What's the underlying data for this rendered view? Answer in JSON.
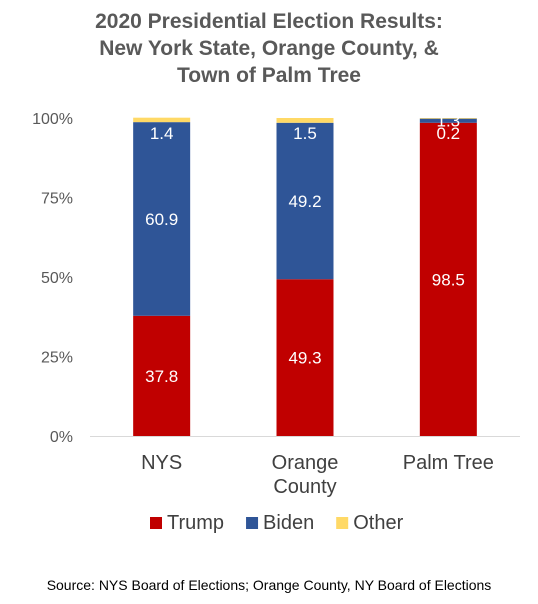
{
  "title_lines": [
    "2020 Presidential Election Results:",
    "New York State, Orange County, &",
    "Town of Palm Tree"
  ],
  "source": "Source: NYS Board of Elections; Orange County, NY Board of Elections",
  "chart_data": {
    "type": "bar",
    "stacked": true,
    "percent": true,
    "categories": [
      [
        "NYS"
      ],
      [
        "Orange",
        "County"
      ],
      [
        "Palm Tree"
      ]
    ],
    "series": [
      {
        "name": "Trump",
        "color": "#C00000",
        "values": [
          37.8,
          49.3,
          98.5
        ],
        "labels": [
          "37.8",
          "49.3",
          "98.5"
        ]
      },
      {
        "name": "Biden",
        "color": "#2F5597",
        "values": [
          60.9,
          49.2,
          1.3
        ],
        "labels": [
          "60.9",
          "49.2",
          "1.3"
        ]
      },
      {
        "name": "Other",
        "color": "#FFD966",
        "values": [
          1.4,
          1.5,
          0.2
        ],
        "labels": [
          "1.4",
          "1.5",
          "0.2"
        ]
      }
    ],
    "yticks": [
      "0%",
      "25%",
      "50%",
      "75%",
      "100%"
    ],
    "ylim": [
      0,
      100
    ],
    "legend_position": "bottom",
    "grid": false
  }
}
